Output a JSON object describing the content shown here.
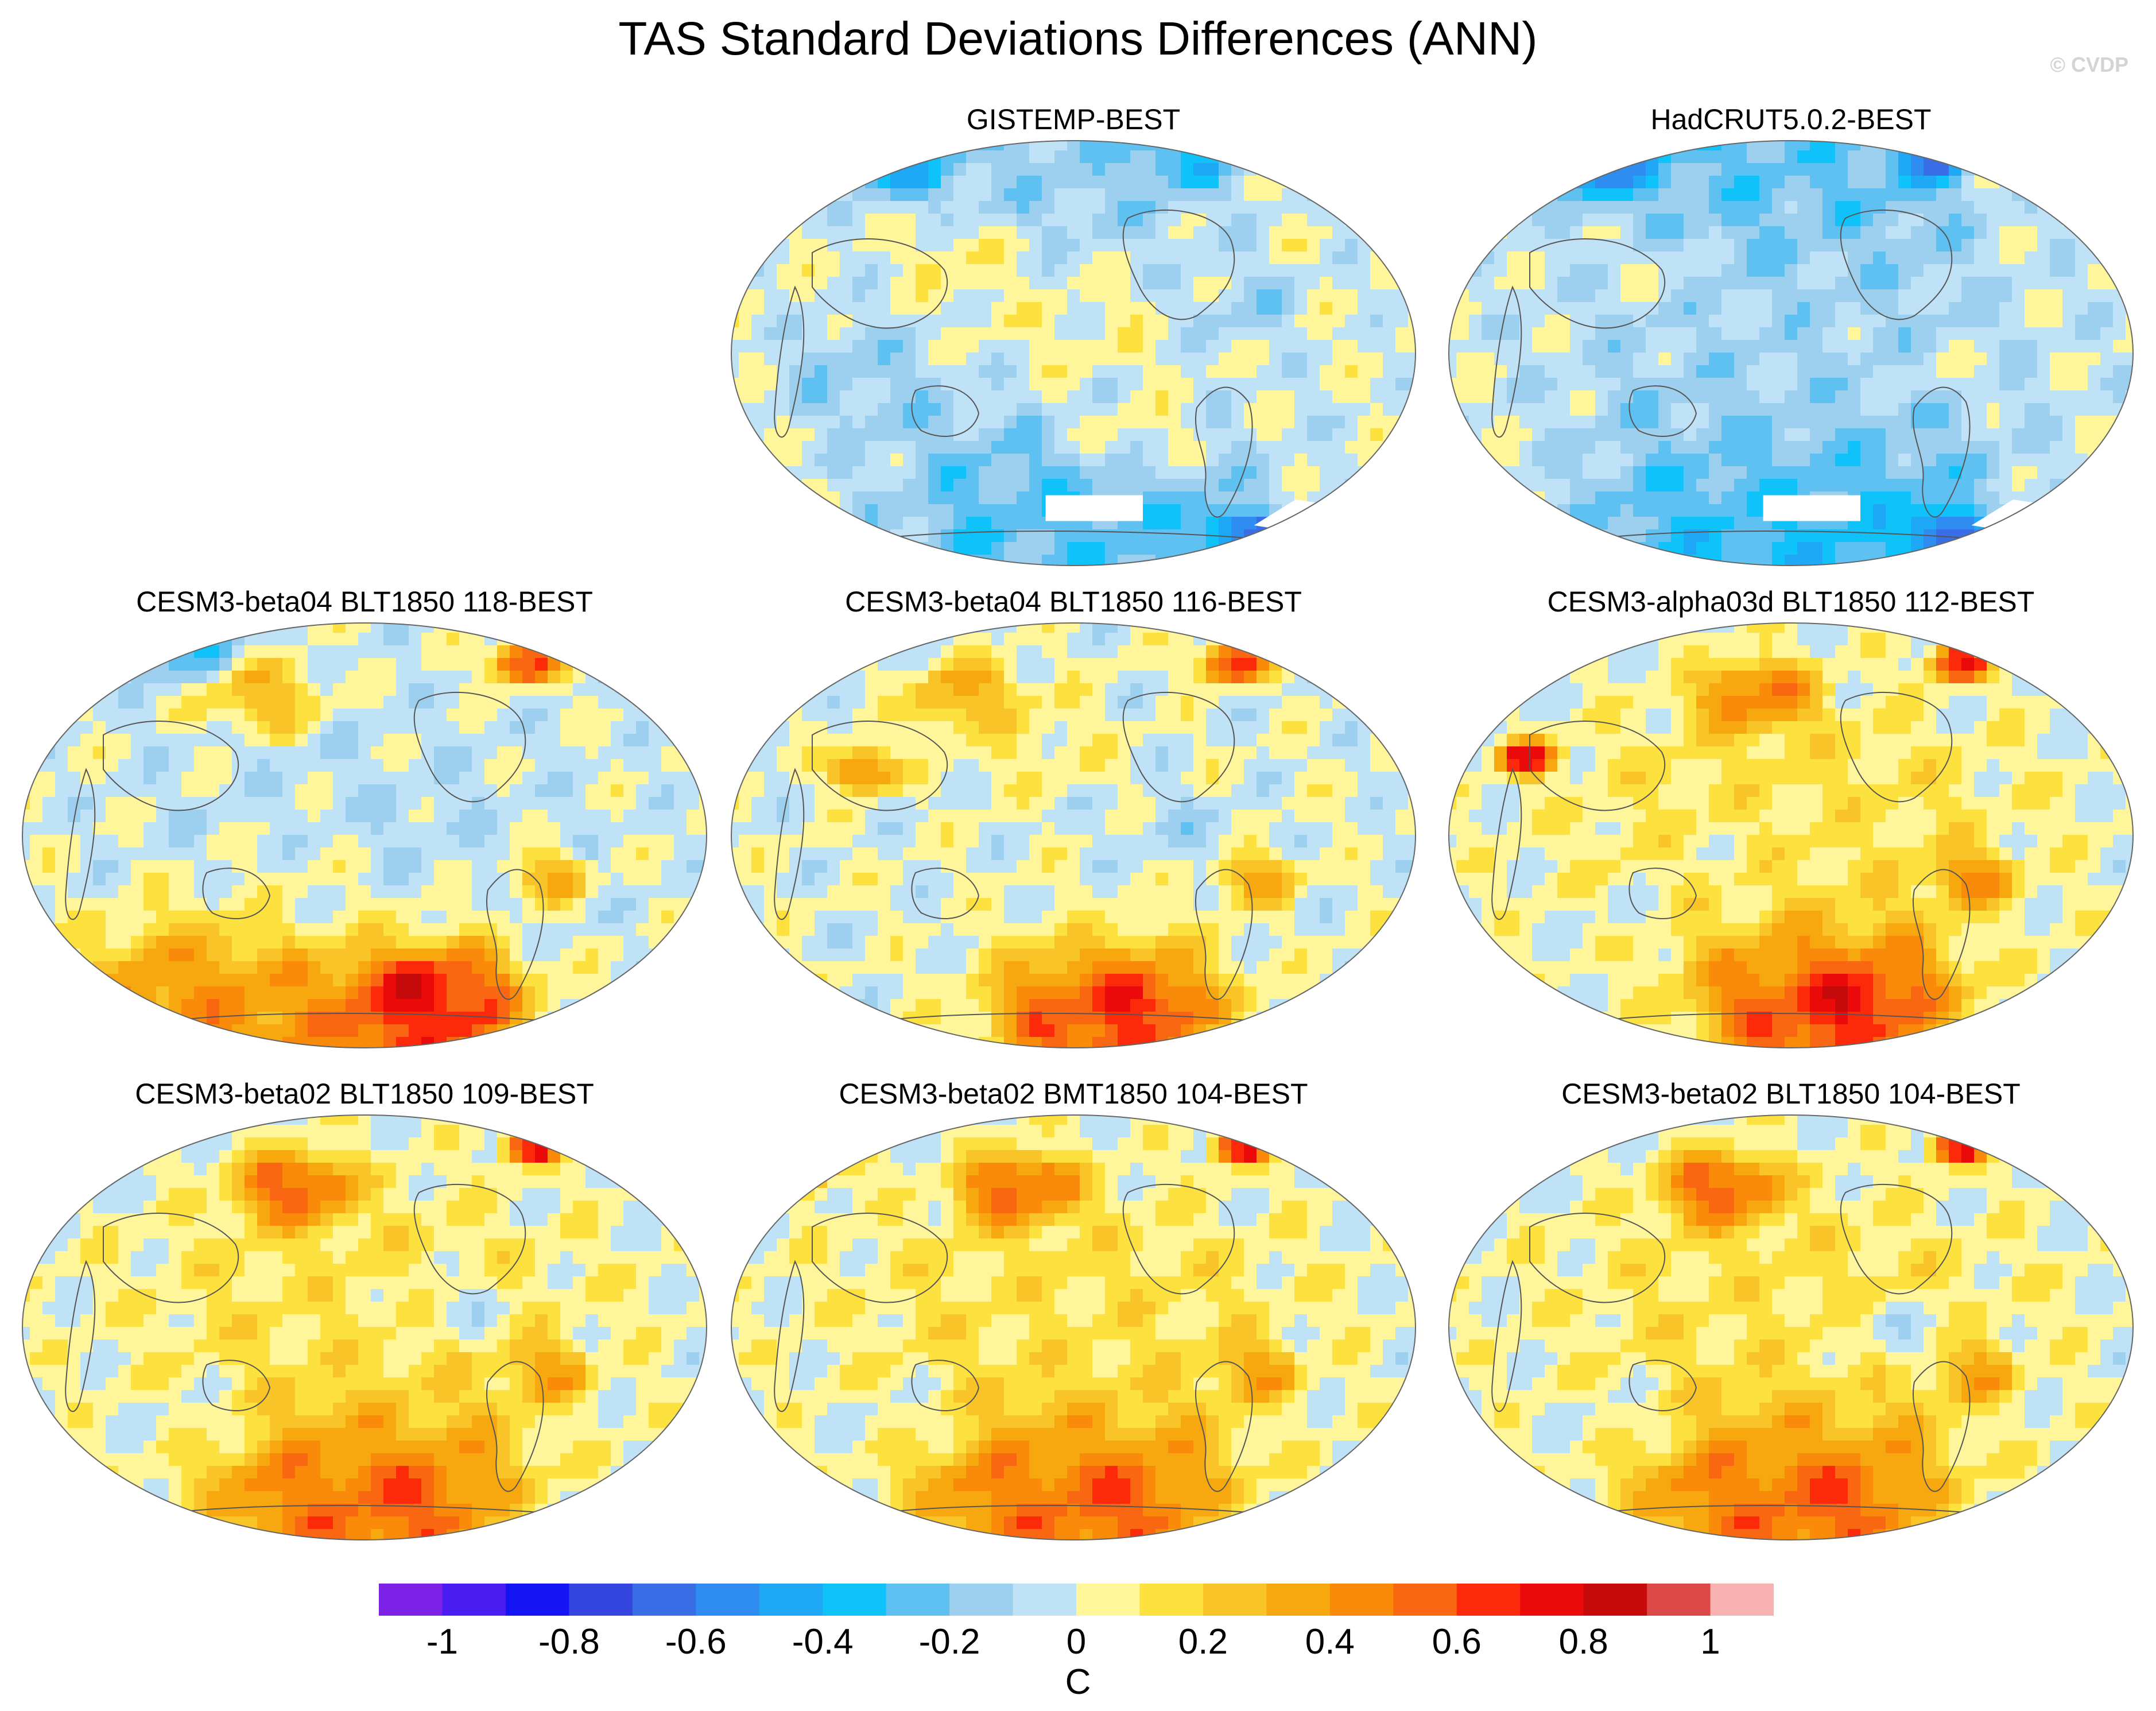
{
  "title": "TAS Standard Deviations Differences (ANN)",
  "watermark": "© CVDP",
  "chart_data": {
    "type": "heatmap",
    "projection": "Robinson-like global map, Pacific-centered",
    "variable": "TAS standard deviation difference",
    "season": "ANN",
    "panels": [
      {
        "title": "GISTEMP-BEST",
        "row": 1,
        "col": 2,
        "pattern": "mostly 0 to 0.2, negative bands near -0.2 to -0.6 at high latitudes, missing data over Antarctica"
      },
      {
        "title": "HadCRUT5.0.2-BEST",
        "row": 1,
        "col": 3,
        "pattern": "mostly -0.2 to 0, strong negative near -0.6 to -1 at high latitudes, missing data over Antarctica"
      },
      {
        "title": "CESM3-beta04 BLT1850 118-BEST",
        "row": 2,
        "col": 1,
        "pattern": "mixed -0.2 to 0.4, positive 0.6 to 1 in Southern Ocean and Greenland"
      },
      {
        "title": "CESM3-beta04 BLT1850 116-BEST",
        "row": 2,
        "col": 2,
        "pattern": "mixed -0.2 to 0.4, positive 0.6 to 1 in Southern Ocean and Greenland"
      },
      {
        "title": "CESM3-alpha03d BLT1850 112-BEST",
        "row": 2,
        "col": 3,
        "pattern": "mostly positive 0.2 to 0.6, North Pacific 0.6 to 0.8, Southern Ocean up to 1"
      },
      {
        "title": "CESM3-beta02 BLT1850 109-BEST",
        "row": 3,
        "col": 1,
        "pattern": "mostly positive, North Pacific 0.6 to 0.8, Southern Ocean 0.6 to 0.8"
      },
      {
        "title": "CESM3-beta02 BMT1850 104-BEST",
        "row": 3,
        "col": 2,
        "pattern": "mostly positive, North Pacific 0.6 to 0.8, Southern Ocean 0.6 to 0.8"
      },
      {
        "title": "CESM3-beta02 BLT1850 104-BEST",
        "row": 3,
        "col": 3,
        "pattern": "mostly positive, North Pacific 0.6 to 0.8, Southern Ocean 0.6 to 0.8"
      }
    ],
    "colorbar": {
      "levels": [
        -1.1,
        -1,
        -0.9,
        -0.8,
        -0.7,
        -0.6,
        -0.5,
        -0.4,
        -0.3,
        -0.2,
        -0.1,
        0,
        0.1,
        0.2,
        0.3,
        0.4,
        0.5,
        0.6,
        0.7,
        0.8,
        0.9,
        1,
        1.1
      ],
      "colors": [
        "#7b22e6",
        "#4a1ef0",
        "#1414f5",
        "#3546e0",
        "#3a6ee6",
        "#2f8cf0",
        "#1ea8f5",
        "#10c2fa",
        "#5ec1f2",
        "#9dd0ee",
        "#bfe2f6",
        "#fff59a",
        "#fce13f",
        "#f9c427",
        "#f7a80f",
        "#f98a0a",
        "#f96713",
        "#fc2a0a",
        "#ea0a0a",
        "#c40a0a",
        "#dc4848",
        "#f8b2b2"
      ],
      "tick_labels": [
        "-1",
        "-0.8",
        "-0.6",
        "-0.4",
        "-0.2",
        "0",
        "0.2",
        "0.4",
        "0.6",
        "0.8",
        "1"
      ],
      "tick_values": [
        -1,
        -0.8,
        -0.6,
        -0.4,
        -0.2,
        0,
        0.2,
        0.4,
        0.6,
        0.8,
        1
      ],
      "units": "C"
    }
  }
}
